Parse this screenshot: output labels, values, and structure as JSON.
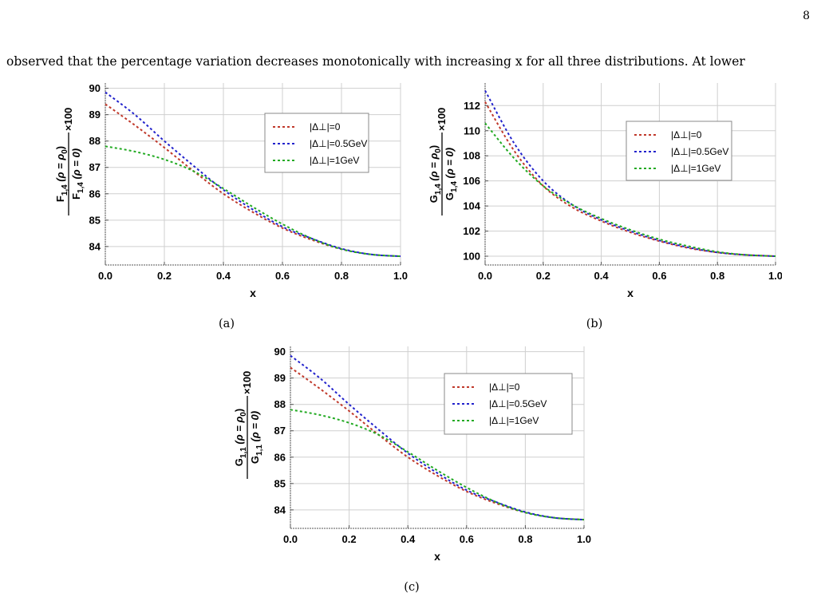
{
  "page": {
    "number": "8",
    "text": "observed that the percentage variation decreases monotonically with increasing x for all three distributions. At lower"
  },
  "chart_data": [
    {
      "type": "line",
      "caption": "(a)",
      "xlabel": "x",
      "ylabel": {
        "func": "F",
        "sub": "1,4",
        "num_arg": "(ρ = ρ",
        "num_sub": "0",
        "num_close": ")",
        "den_arg": "(ρ = 0)",
        "factor": "×100"
      },
      "xlim": [
        0,
        1
      ],
      "ylim": [
        83.3,
        90.2
      ],
      "xticks": [
        0.0,
        0.2,
        0.4,
        0.6,
        0.8,
        1.0
      ],
      "xtick_labels": [
        "0.0",
        "0.2",
        "0.4",
        "0.6",
        "0.8",
        "1.0"
      ],
      "yticks": [
        84,
        85,
        86,
        87,
        88,
        89,
        90
      ],
      "grid": true,
      "legend_position": "top-right",
      "series": [
        {
          "name": "|Δ⊥|=0",
          "color": "#c0392b",
          "x": [
            0,
            0.1,
            0.2,
            0.3,
            0.4,
            0.5,
            0.6,
            0.7,
            0.8,
            0.9,
            1.0
          ],
          "y": [
            89.4,
            88.6,
            87.75,
            86.85,
            86.0,
            85.3,
            84.7,
            84.25,
            83.9,
            83.7,
            83.63
          ]
        },
        {
          "name": "|Δ⊥|=0.5GeV",
          "color": "#2222cc",
          "x": [
            0,
            0.1,
            0.2,
            0.3,
            0.4,
            0.5,
            0.6,
            0.7,
            0.8,
            0.9,
            1.0
          ],
          "y": [
            89.85,
            89.0,
            88.0,
            87.05,
            86.15,
            85.4,
            84.75,
            84.3,
            83.92,
            83.7,
            83.63
          ]
        },
        {
          "name": "|Δ⊥|=1GeV",
          "color": "#22aa22",
          "x": [
            0,
            0.1,
            0.2,
            0.3,
            0.4,
            0.5,
            0.6,
            0.7,
            0.8,
            0.9,
            1.0
          ],
          "y": [
            87.8,
            87.6,
            87.3,
            86.85,
            86.2,
            85.5,
            84.85,
            84.3,
            83.9,
            83.7,
            83.63
          ]
        }
      ]
    },
    {
      "type": "line",
      "caption": "(b)",
      "xlabel": "x",
      "ylabel": {
        "func": "G",
        "sub": "1,4",
        "num_arg": "(ρ = ρ",
        "num_sub": "0",
        "num_close": ")",
        "den_arg": "(ρ = 0)",
        "factor": "×100"
      },
      "xlim": [
        0,
        1
      ],
      "ylim": [
        99.3,
        113.8
      ],
      "xticks": [
        0.0,
        0.2,
        0.4,
        0.6,
        0.8,
        1.0
      ],
      "xtick_labels": [
        "0.0",
        "0.2",
        "0.4",
        "0.6",
        "0.8",
        "1.0"
      ],
      "yticks": [
        100,
        102,
        104,
        106,
        108,
        110,
        112
      ],
      "grid": true,
      "legend_position": "top-right",
      "series": [
        {
          "name": "|Δ⊥|=0",
          "color": "#c0392b",
          "x": [
            0,
            0.1,
            0.2,
            0.3,
            0.4,
            0.5,
            0.6,
            0.7,
            0.8,
            0.9,
            1.0
          ],
          "y": [
            112.3,
            108.4,
            105.6,
            103.9,
            102.8,
            101.9,
            101.2,
            100.65,
            100.3,
            100.1,
            100.0
          ]
        },
        {
          "name": "|Δ⊥|=0.5GeV",
          "color": "#2222cc",
          "x": [
            0,
            0.1,
            0.2,
            0.3,
            0.4,
            0.5,
            0.6,
            0.7,
            0.8,
            0.9,
            1.0
          ],
          "y": [
            113.2,
            109.0,
            106.0,
            104.1,
            102.9,
            102.0,
            101.25,
            100.7,
            100.3,
            100.1,
            100.0
          ]
        },
        {
          "name": "|Δ⊥|=1GeV",
          "color": "#22aa22",
          "x": [
            0,
            0.1,
            0.2,
            0.3,
            0.4,
            0.5,
            0.6,
            0.7,
            0.8,
            0.9,
            1.0
          ],
          "y": [
            110.6,
            107.8,
            105.6,
            104.1,
            103.0,
            102.1,
            101.35,
            100.8,
            100.35,
            100.1,
            100.0
          ]
        }
      ]
    },
    {
      "type": "line",
      "caption": "(c)",
      "xlabel": "x",
      "ylabel": {
        "func": "G",
        "sub": "1,1",
        "num_arg": "(ρ = ρ",
        "num_sub": "0",
        "num_close": ")",
        "den_arg": "(ρ = 0)",
        "factor": "×100"
      },
      "xlim": [
        0,
        1
      ],
      "ylim": [
        83.3,
        90.2
      ],
      "xticks": [
        0.0,
        0.2,
        0.4,
        0.6,
        0.8,
        1.0
      ],
      "xtick_labels": [
        "0.0",
        "0.2",
        "0.4",
        "0.6",
        "0.8",
        "1.0"
      ],
      "yticks": [
        84,
        85,
        86,
        87,
        88,
        89,
        90
      ],
      "grid": true,
      "legend_position": "top-right",
      "series": [
        {
          "name": "|Δ⊥|=0",
          "color": "#c0392b",
          "x": [
            0,
            0.1,
            0.2,
            0.3,
            0.4,
            0.5,
            0.6,
            0.7,
            0.8,
            0.9,
            1.0
          ],
          "y": [
            89.4,
            88.6,
            87.75,
            86.85,
            86.0,
            85.3,
            84.7,
            84.25,
            83.9,
            83.7,
            83.63
          ]
        },
        {
          "name": "|Δ⊥|=0.5GeV",
          "color": "#2222cc",
          "x": [
            0,
            0.1,
            0.2,
            0.3,
            0.4,
            0.5,
            0.6,
            0.7,
            0.8,
            0.9,
            1.0
          ],
          "y": [
            89.85,
            89.0,
            88.0,
            87.05,
            86.15,
            85.4,
            84.75,
            84.3,
            83.92,
            83.7,
            83.63
          ]
        },
        {
          "name": "|Δ⊥|=1GeV",
          "color": "#22aa22",
          "x": [
            0,
            0.1,
            0.2,
            0.3,
            0.4,
            0.5,
            0.6,
            0.7,
            0.8,
            0.9,
            1.0
          ],
          "y": [
            87.8,
            87.6,
            87.3,
            86.85,
            86.2,
            85.5,
            84.85,
            84.3,
            83.9,
            83.7,
            83.63
          ]
        }
      ]
    }
  ]
}
